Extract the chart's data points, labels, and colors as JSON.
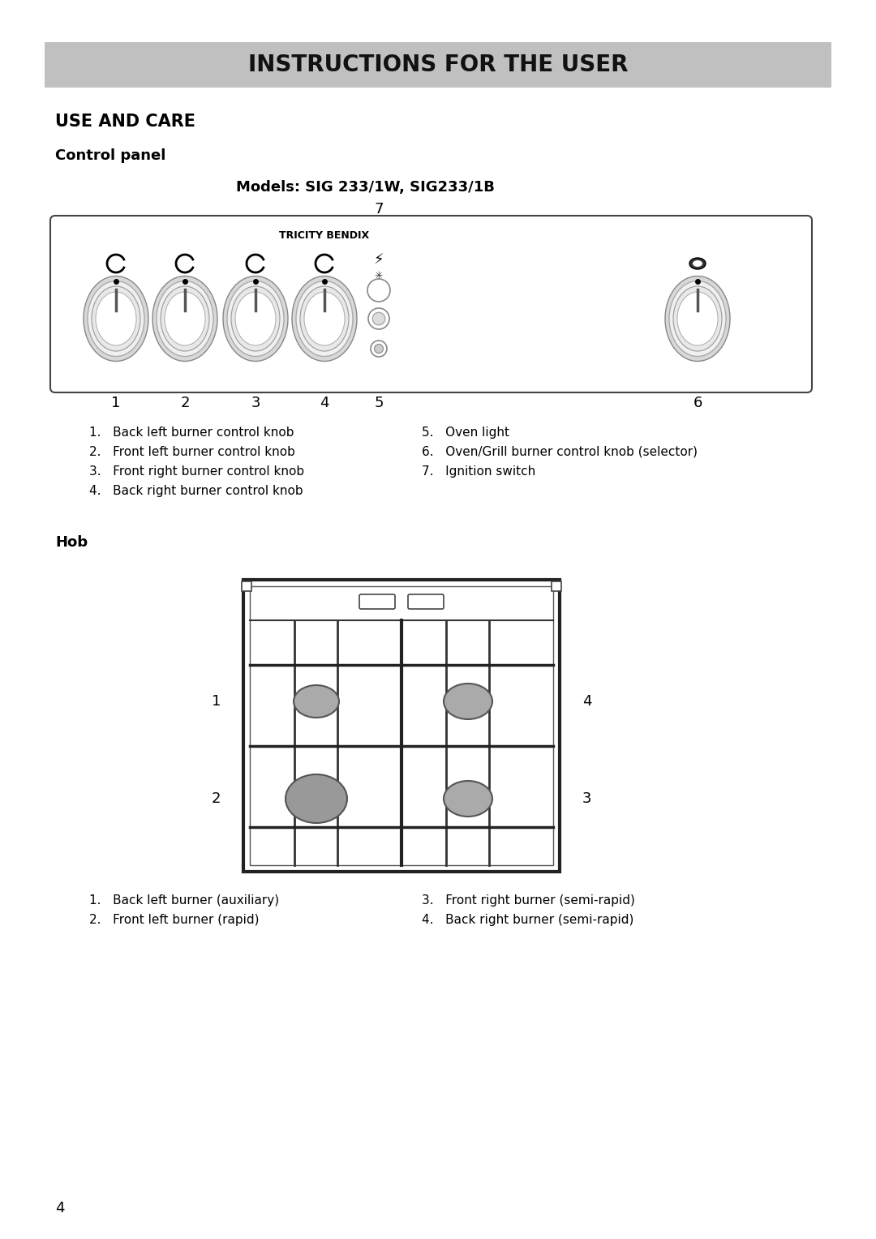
{
  "title_bar_text": "INSTRUCTIONS FOR THE USER",
  "title_bar_bg": "#c0c0c0",
  "section1_title": "USE AND CARE",
  "subsection1_title": "Control panel",
  "models_title": "Models: SIG 233/1W, SIG233/1B",
  "panel_label_7": "7",
  "panel_brand": "TRICITY BENDIX",
  "panel_numbers": [
    "1",
    "2",
    "3",
    "4",
    "5",
    "6"
  ],
  "panel_items_left": [
    "1.   Back left burner control knob",
    "2.   Front left burner control knob",
    "3.   Front right burner control knob",
    "4.   Back right burner control knob"
  ],
  "panel_items_right": [
    "5.   Oven light",
    "6.   Oven/Grill burner control knob (selector)",
    "7.   Ignition switch"
  ],
  "hob_title": "Hob",
  "hob_items_left": [
    "1.   Back left burner (auxiliary)",
    "2.   Front left burner (rapid)"
  ],
  "hob_items_right": [
    "3.   Front right burner (semi-rapid)",
    "4.   Back right burner (semi-rapid)"
  ],
  "page_number": "4",
  "bg_color": "#ffffff",
  "text_color": "#000000"
}
